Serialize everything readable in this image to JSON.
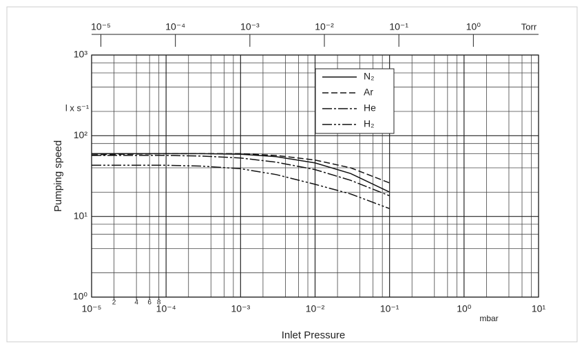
{
  "chart_data": {
    "type": "line",
    "x_label": "Inlet Pressure",
    "y_label": "Pumping speed",
    "y_unit": "l x s⁻¹",
    "x_unit": "mbar",
    "x2_unit": "Torr",
    "log_x": true,
    "log_y": true,
    "grid": true,
    "grid_multiples": [
      2,
      4,
      6,
      8
    ],
    "xlim": [
      1e-05,
      10
    ],
    "ylim": [
      1,
      1000
    ],
    "xticks": [
      {
        "value": 1e-05,
        "label": "10⁻⁵"
      },
      {
        "value": 0.0001,
        "label": "10⁻⁴"
      },
      {
        "value": 0.001,
        "label": "10⁻³"
      },
      {
        "value": 0.01,
        "label": "10⁻²"
      },
      {
        "value": 0.1,
        "label": "10⁻¹"
      },
      {
        "value": 1,
        "label": "10⁰"
      },
      {
        "value": 10,
        "label": "10¹"
      }
    ],
    "xticks_minor": [
      {
        "value": 2e-05,
        "label": "2"
      },
      {
        "value": 4e-05,
        "label": "4"
      },
      {
        "value": 6e-05,
        "label": "6"
      },
      {
        "value": 8e-05,
        "label": "8"
      }
    ],
    "yticks": [
      {
        "value": 1,
        "label": "10⁰"
      },
      {
        "value": 10,
        "label": "10¹"
      },
      {
        "value": 100,
        "label": "10²"
      },
      {
        "value": 1000,
        "label": "10³"
      }
    ],
    "x2lim": [
      7.5e-06,
      7.5
    ],
    "x2ticks": [
      {
        "value": 1e-05,
        "label": "10⁻⁵"
      },
      {
        "value": 0.0001,
        "label": "10⁻⁴"
      },
      {
        "value": 0.001,
        "label": "10⁻³"
      },
      {
        "value": 0.01,
        "label": "10⁻²"
      },
      {
        "value": 0.1,
        "label": "10⁻¹"
      },
      {
        "value": 1,
        "label": "10⁰"
      }
    ],
    "x": [
      1e-05,
      3e-05,
      0.0001,
      0.0003,
      0.001,
      0.003,
      0.01,
      0.03,
      0.1
    ],
    "series": [
      {
        "name": "N₂",
        "color": "#111111",
        "linestyle": "solid",
        "values": [
          60,
          60,
          60,
          60,
          59,
          55,
          46,
          34,
          20
        ]
      },
      {
        "name": "Ar",
        "color": "#111111",
        "linestyle": "dashed",
        "values": [
          58,
          59,
          60,
          60,
          60,
          57,
          50,
          40,
          26
        ]
      },
      {
        "name": "He",
        "color": "#111111",
        "linestyle": "dashdot",
        "values": [
          57,
          57,
          57,
          56,
          53,
          47,
          38,
          28,
          18
        ]
      },
      {
        "name": "H₂",
        "color": "#111111",
        "linestyle": "dashdotdot",
        "values": [
          43,
          43,
          43,
          42,
          39,
          33,
          25,
          19,
          12.5
        ]
      }
    ]
  }
}
